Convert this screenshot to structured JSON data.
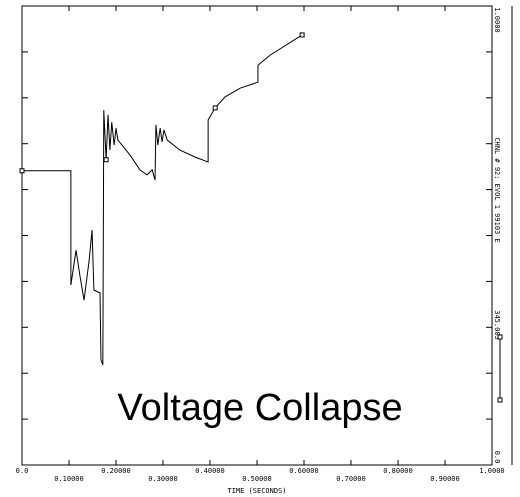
{
  "chart_data": {
    "type": "line",
    "annotation": "Voltage Collapse",
    "xlabel": "TIME (SECONDS)",
    "ylabel": "CHNL # 92: EVOL 1 99103 E",
    "xlim": [
      0,
      1
    ],
    "ylim": [
      0,
      1
    ],
    "xticks": [
      {
        "value": 0,
        "label": "0.0"
      },
      {
        "value": 0.1,
        "label": "0.10000"
      },
      {
        "value": 0.2,
        "label": "0.20000"
      },
      {
        "value": 0.3,
        "label": "0.30000"
      },
      {
        "value": 0.4,
        "label": "0.40000"
      },
      {
        "value": 0.5,
        "label": "0.50000"
      },
      {
        "value": 0.6,
        "label": "0.60000"
      },
      {
        "value": 0.7,
        "label": "0.70000"
      },
      {
        "value": 0.8,
        "label": "0.80000"
      },
      {
        "value": 0.9,
        "label": "0.90000"
      },
      {
        "value": 1,
        "label": "1.0000"
      }
    ],
    "yticks": [
      {
        "value": 0,
        "label": "0.0"
      },
      {
        "value": 1,
        "label": "1.0000"
      }
    ],
    "yticks_minor": [
      0.1,
      0.2,
      0.3,
      0.4,
      0.5,
      0.6,
      0.7,
      0.8,
      0.9
    ],
    "series": [
      {
        "name": "345.003",
        "color": "#000000",
        "markers": [
          0,
          13,
          35,
          41
        ],
        "x": [
          0,
          0.104,
          0.104,
          0.115,
          0.123,
          0.132,
          0.143,
          0.149,
          0.153,
          0.166,
          0.168,
          0.172,
          0.174,
          0.179,
          0.183,
          0.187,
          0.191,
          0.196,
          0.2,
          0.204,
          0.23,
          0.251,
          0.266,
          0.277,
          0.283,
          0.285,
          0.289,
          0.294,
          0.298,
          0.302,
          0.309,
          0.336,
          0.368,
          0.396,
          0.396,
          0.411,
          0.432,
          0.464,
          0.502,
          0.502,
          0.528,
          0.596
        ],
        "values": [
          0.641,
          0.641,
          0.392,
          0.468,
          0.414,
          0.359,
          0.447,
          0.512,
          0.381,
          0.375,
          0.229,
          0.218,
          0.773,
          0.665,
          0.763,
          0.686,
          0.747,
          0.697,
          0.734,
          0.708,
          0.675,
          0.643,
          0.632,
          0.643,
          0.621,
          0.741,
          0.697,
          0.734,
          0.704,
          0.73,
          0.708,
          0.686,
          0.671,
          0.66,
          0.752,
          0.778,
          0.802,
          0.821,
          0.834,
          0.871,
          0.893,
          0.937
        ]
      }
    ]
  }
}
